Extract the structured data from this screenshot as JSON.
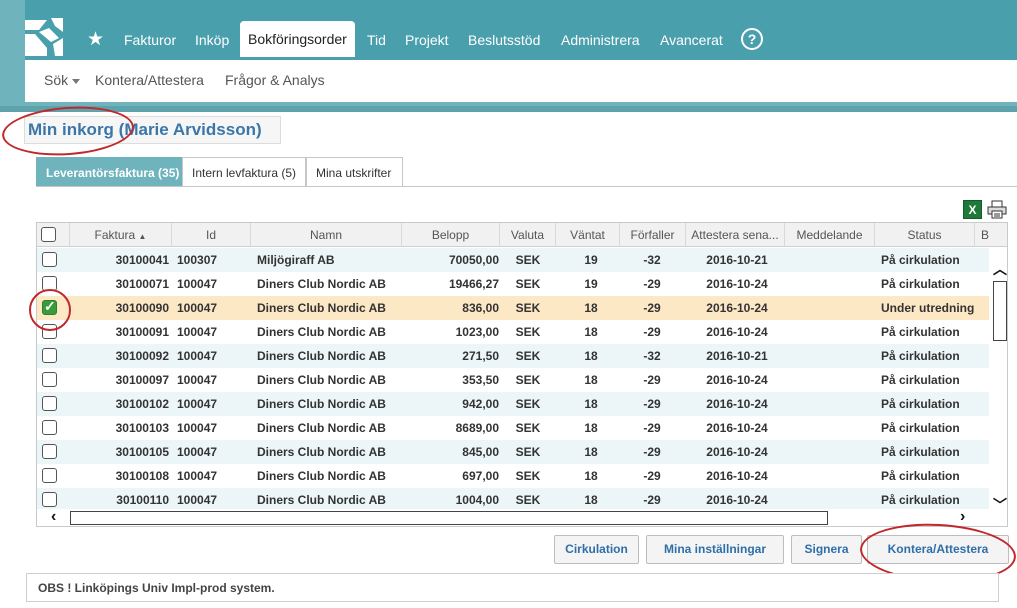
{
  "nav": {
    "items": [
      "Fakturor",
      "Inköp",
      "Bokföringsorder",
      "Tid",
      "Projekt",
      "Beslutsstöd",
      "Administrera",
      "Avancerat"
    ],
    "active": "Bokföringsorder",
    "help": "?"
  },
  "subnav": {
    "search": "Sök",
    "items": [
      "Kontera/Attestera",
      "Frågor & Analys"
    ]
  },
  "page": {
    "title": "Min inkorg (Marie Arvidsson)"
  },
  "tabs": [
    {
      "label": "Leverantörsfaktura (35)",
      "active": true
    },
    {
      "label": "Intern levfaktura (5)",
      "active": false
    },
    {
      "label": "Mina utskrifter",
      "active": false
    }
  ],
  "grid": {
    "columns": [
      "",
      "Faktura",
      "Id",
      "Namn",
      "Belopp",
      "Valuta",
      "Väntat",
      "Förfaller",
      "Attestera sena...",
      "Meddelande",
      "Status",
      "B"
    ],
    "sort_indicator": "▲",
    "rows": [
      {
        "checked": false,
        "faktura": "30100041",
        "id": "100307",
        "namn": "Miljögiraff AB",
        "belopp": "70050,00",
        "valuta": "SEK",
        "vantat": "19",
        "forfaller": "-32",
        "attestera": "2016-10-21",
        "meddelande": "",
        "status": "På cirkulation"
      },
      {
        "checked": false,
        "faktura": "30100071",
        "id": "100047",
        "namn": "Diners Club Nordic AB",
        "belopp": "19466,27",
        "valuta": "SEK",
        "vantat": "19",
        "forfaller": "-29",
        "attestera": "2016-10-24",
        "meddelande": "",
        "status": "På cirkulation"
      },
      {
        "checked": true,
        "faktura": "30100090",
        "id": "100047",
        "namn": "Diners Club Nordic AB",
        "belopp": "836,00",
        "valuta": "SEK",
        "vantat": "18",
        "forfaller": "-29",
        "attestera": "2016-10-24",
        "meddelande": "",
        "status": "Under utredning"
      },
      {
        "checked": false,
        "faktura": "30100091",
        "id": "100047",
        "namn": "Diners Club Nordic AB",
        "belopp": "1023,00",
        "valuta": "SEK",
        "vantat": "18",
        "forfaller": "-29",
        "attestera": "2016-10-24",
        "meddelande": "",
        "status": "På cirkulation"
      },
      {
        "checked": false,
        "faktura": "30100092",
        "id": "100047",
        "namn": "Diners Club Nordic AB",
        "belopp": "271,50",
        "valuta": "SEK",
        "vantat": "18",
        "forfaller": "-32",
        "attestera": "2016-10-21",
        "meddelande": "",
        "status": "På cirkulation"
      },
      {
        "checked": false,
        "faktura": "30100097",
        "id": "100047",
        "namn": "Diners Club Nordic AB",
        "belopp": "353,50",
        "valuta": "SEK",
        "vantat": "18",
        "forfaller": "-29",
        "attestera": "2016-10-24",
        "meddelande": "",
        "status": "På cirkulation"
      },
      {
        "checked": false,
        "faktura": "30100102",
        "id": "100047",
        "namn": "Diners Club Nordic AB",
        "belopp": "942,00",
        "valuta": "SEK",
        "vantat": "18",
        "forfaller": "-29",
        "attestera": "2016-10-24",
        "meddelande": "",
        "status": "På cirkulation"
      },
      {
        "checked": false,
        "faktura": "30100103",
        "id": "100047",
        "namn": "Diners Club Nordic AB",
        "belopp": "8689,00",
        "valuta": "SEK",
        "vantat": "18",
        "forfaller": "-29",
        "attestera": "2016-10-24",
        "meddelande": "",
        "status": "På cirkulation"
      },
      {
        "checked": false,
        "faktura": "30100105",
        "id": "100047",
        "namn": "Diners Club Nordic AB",
        "belopp": "845,00",
        "valuta": "SEK",
        "vantat": "18",
        "forfaller": "-29",
        "attestera": "2016-10-24",
        "meddelande": "",
        "status": "På cirkulation"
      },
      {
        "checked": false,
        "faktura": "30100108",
        "id": "100047",
        "namn": "Diners Club Nordic AB",
        "belopp": "697,00",
        "valuta": "SEK",
        "vantat": "18",
        "forfaller": "-29",
        "attestera": "2016-10-24",
        "meddelande": "",
        "status": "På cirkulation"
      },
      {
        "checked": false,
        "faktura": "30100110",
        "id": "100047",
        "namn": "Diners Club Nordic AB",
        "belopp": "1004,00",
        "valuta": "SEK",
        "vantat": "18",
        "forfaller": "-29",
        "attestera": "2016-10-24",
        "meddelande": "",
        "status": "På cirkulation"
      }
    ]
  },
  "icons": {
    "excel": "excel-icon",
    "print": "print-icon",
    "excel_glyph": "X"
  },
  "buttons": {
    "cirkulation": "Cirkulation",
    "installningar": "Mina inställningar",
    "signera": "Signera",
    "kontera": "Kontera/Attestera"
  },
  "notice": "OBS ! Linköpings Univ Impl-prod system.",
  "colors": {
    "accent": "#4a9fad",
    "title": "#3b76a8",
    "selected_row": "#fde8c6",
    "annotation": "#c0282b"
  }
}
